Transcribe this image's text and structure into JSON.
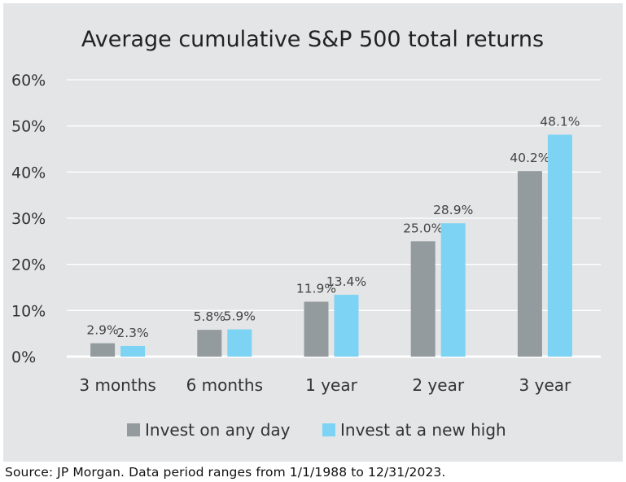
{
  "chart_data": {
    "type": "bar",
    "title": "Average cumulative S&P 500 total returns",
    "categories": [
      "3 months",
      "6 months",
      "1 year",
      "2 year",
      "3 year"
    ],
    "series": [
      {
        "name": "Invest on any day",
        "color": "#939b9e",
        "values": [
          2.9,
          5.8,
          11.9,
          25.0,
          40.2
        ],
        "labels": [
          "2.9%",
          "5.8%",
          "11.9%",
          "25.0%",
          "40.2%"
        ]
      },
      {
        "name": "Invest at a new high",
        "color": "#7dd3f3",
        "values": [
          2.3,
          5.9,
          13.4,
          28.9,
          48.1
        ],
        "labels": [
          "2.3%",
          "5.9%",
          "13.4%",
          "28.9%",
          "48.1%"
        ]
      }
    ],
    "ylim": [
      0,
      60
    ],
    "yticks": [
      0,
      10,
      20,
      30,
      40,
      50,
      60
    ],
    "ytick_labels": [
      "0%",
      "10%",
      "20%",
      "30%",
      "40%",
      "50%",
      "60%"
    ],
    "grid": true,
    "legend": "bottom"
  },
  "source": "Source: JP Morgan. Data period ranges from 1/1/1988 to 12/31/2023."
}
